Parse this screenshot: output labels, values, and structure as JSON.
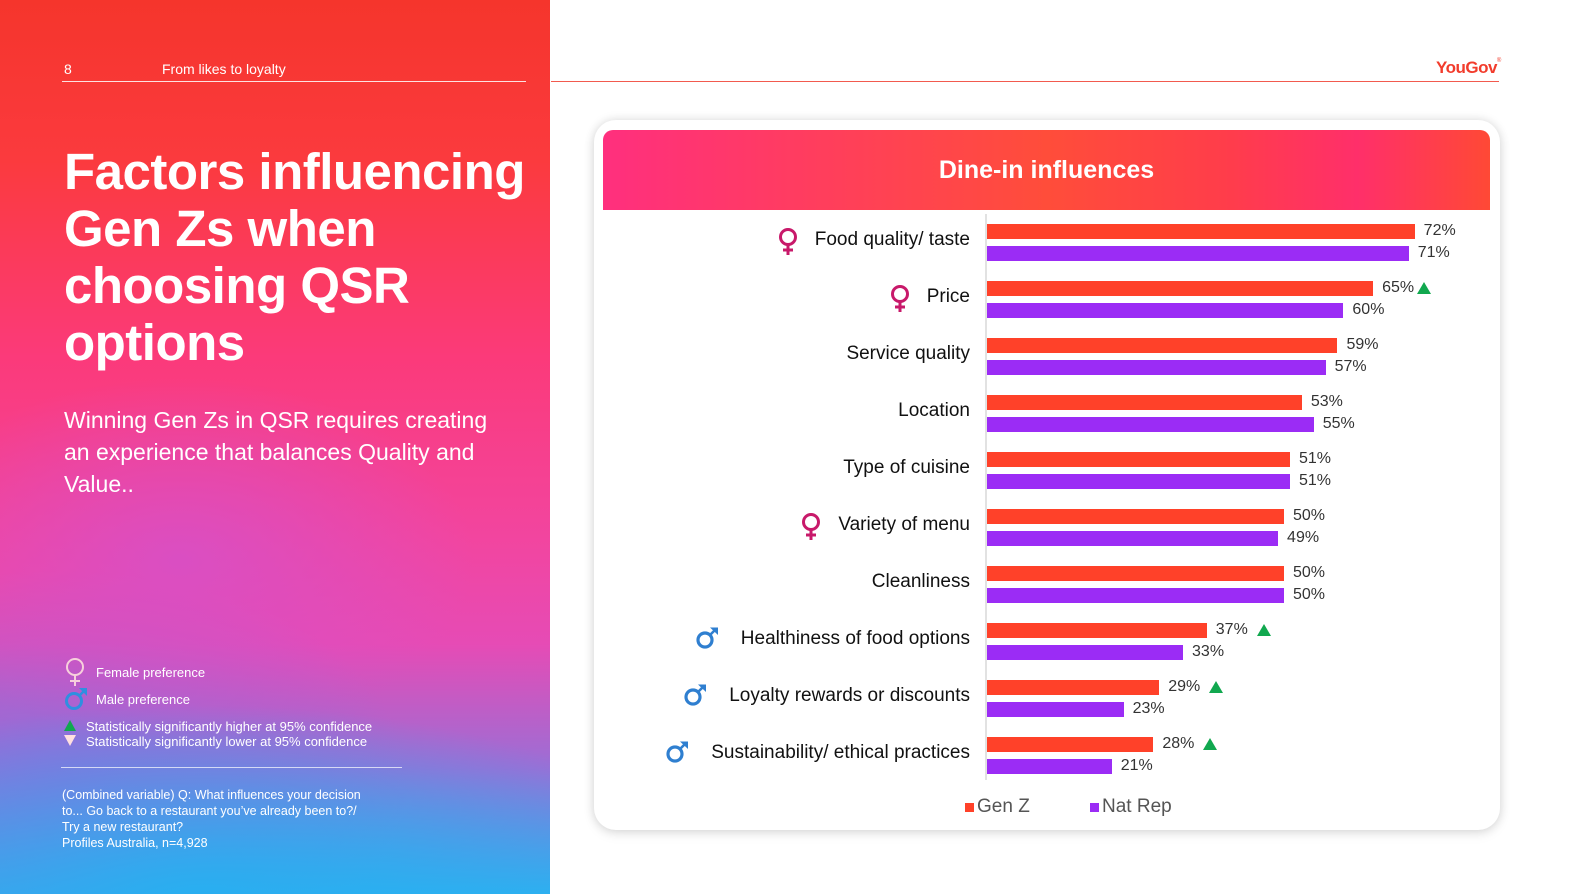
{
  "header": {
    "page_number": "8",
    "section_title": "From likes to loyalty",
    "logo": "YouGov",
    "logo_mark": "®"
  },
  "left": {
    "title": "Factors influencing Gen Zs when choosing QSR options",
    "subtitle": "Winning Gen Zs in QSR requires creating an experience that balances Quality and Value..",
    "legend": {
      "female": {
        "icon": "female-symbol-icon",
        "label": "Female preference"
      },
      "male": {
        "icon": "male-symbol-icon",
        "label": "Male preference"
      },
      "sig_higher": {
        "icon": "triangle-up-icon",
        "label": "Statistically significantly higher at 95% confidence"
      },
      "sig_lower": {
        "icon": "triangle-down-icon",
        "label": "Statistically significantly lower at 95% confidence"
      }
    },
    "footnote": [
      "(Combined variable) Q: What influences your decision",
      "to... Go back to a restaurant you’ve already been to?/",
      "Try a new restaurant?",
      "Profiles Australia, n=4,928"
    ]
  },
  "colors": {
    "genz": "#ff4129",
    "natrep": "#9b2cf5",
    "female": "#c8196a",
    "male": "#2f7fd0",
    "sig_up": "#11a84f",
    "brand": "#f23c2c"
  },
  "chart_data": {
    "type": "bar",
    "orientation": "horizontal",
    "title": "Dine-in influences",
    "xlabel": "",
    "ylabel": "",
    "xlim": [
      0,
      100
    ],
    "unit": "%",
    "grid": false,
    "legend_position": "bottom",
    "categories": [
      "Food quality/ taste",
      "Price",
      "Service quality",
      "Location",
      "Type of cuisine",
      "Variety of menu",
      "Cleanliness",
      "Healthiness of food options",
      "Loyalty rewards or discounts",
      "Sustainability/ ethical practices"
    ],
    "gender_preference": [
      "female",
      "female",
      null,
      null,
      null,
      "female",
      null,
      "male",
      "male",
      "male"
    ],
    "series": [
      {
        "name": "Gen Z",
        "values": [
          72,
          65,
          59,
          53,
          51,
          50,
          50,
          37,
          29,
          28
        ],
        "significantly_higher": [
          false,
          true,
          false,
          false,
          false,
          false,
          false,
          true,
          true,
          true
        ]
      },
      {
        "name": "Nat Rep",
        "values": [
          71,
          60,
          57,
          55,
          51,
          49,
          50,
          33,
          23,
          21
        ]
      }
    ]
  }
}
